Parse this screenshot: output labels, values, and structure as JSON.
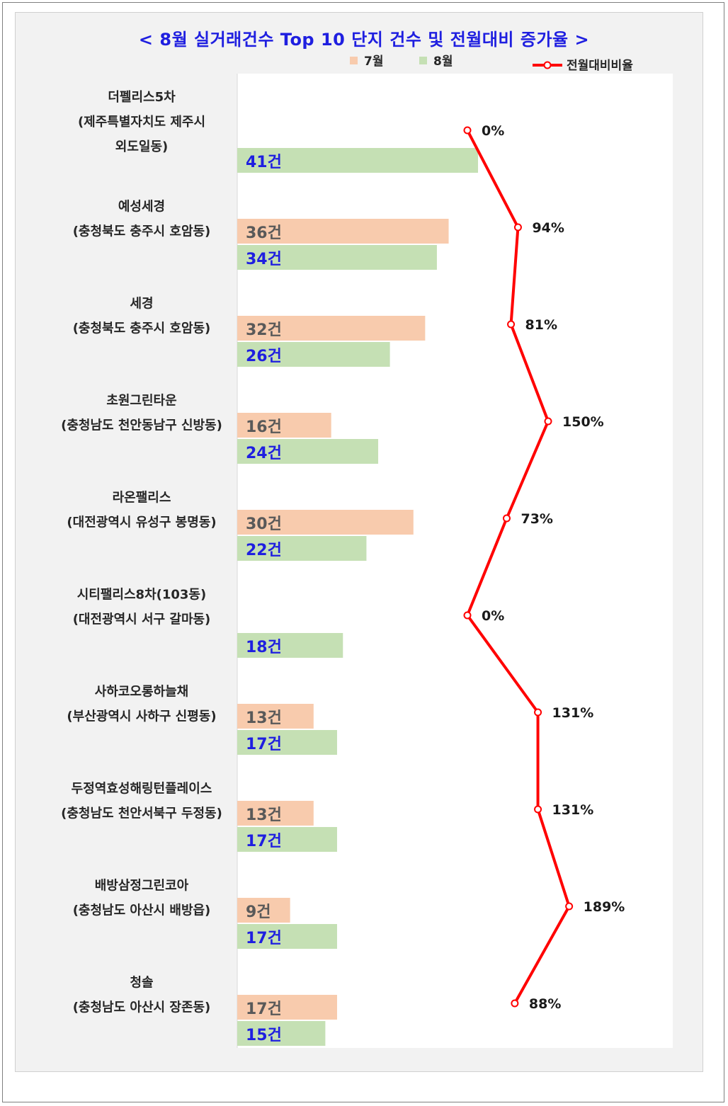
{
  "chart_data": {
    "type": "bar",
    "title": "< 8월 실거래건수 Top 10 단지 건수 및 전월대비 증가율 >",
    "orientation": "horizontal",
    "unit_suffix": "건",
    "pct_suffix": "%",
    "categories": [
      [
        "더펠리스5차",
        "(제주특별자치도 제주시",
        "외도일동)"
      ],
      [
        "예성세경",
        "(충청북도 충주시 호암동)"
      ],
      [
        "세경",
        "(충청북도 충주시 호암동)"
      ],
      [
        "초원그린타운",
        "(충청남도 천안동남구 신방동)"
      ],
      [
        "라온팰리스",
        "(대전광역시 유성구 봉명동)"
      ],
      [
        "시티팰리스8차(103동)",
        "(대전광역시 서구 갈마동)"
      ],
      [
        "사하코오롱하늘채",
        "(부산광역시 사하구 신평동)"
      ],
      [
        "두정역효성해링턴플레이스",
        "(충청남도 천안서북구 두정동)"
      ],
      [
        "배방삼정그린코아",
        "(충청남도 아산시 배방읍)"
      ],
      [
        "청솔",
        "(충청남도 아산시 장존동)"
      ]
    ],
    "series": [
      {
        "name": "7월",
        "color": "#f8cbad",
        "values": [
          0,
          36,
          32,
          16,
          30,
          0,
          13,
          13,
          9,
          17
        ]
      },
      {
        "name": "8월",
        "color": "#c5e0b4",
        "values": [
          41,
          34,
          26,
          24,
          22,
          18,
          17,
          17,
          17,
          15
        ]
      },
      {
        "name": "전월대비비율",
        "color": "#ff0000",
        "type": "line",
        "values": [
          0,
          94,
          81,
          150,
          73,
          0,
          131,
          131,
          189,
          88
        ]
      }
    ],
    "bar_xlim": [
      0,
      50
    ],
    "line_xlim": [
      0,
      200
    ],
    "legend_position": "top"
  }
}
